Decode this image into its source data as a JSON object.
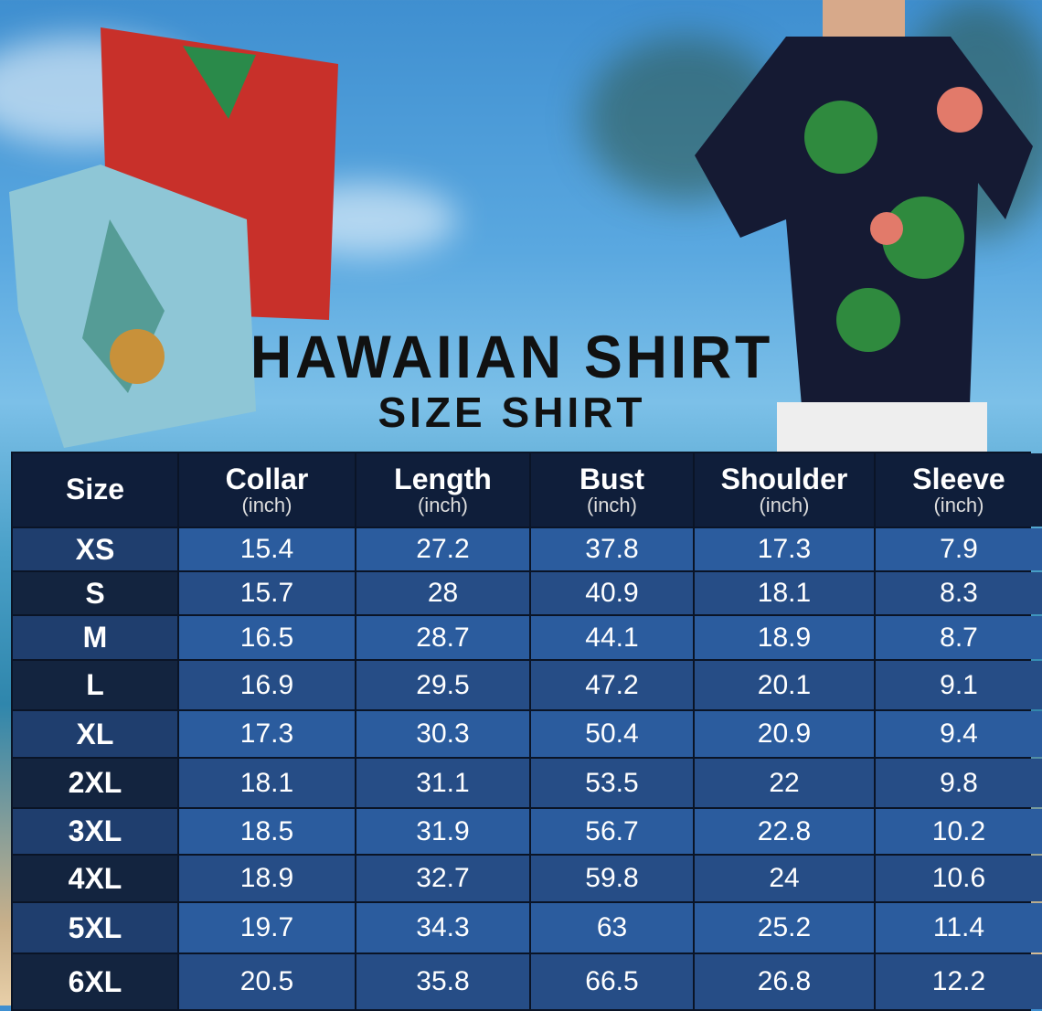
{
  "title": "HAWAIIAN SHIRT",
  "subtitle": "SIZE SHIRT",
  "table": {
    "headers": [
      {
        "label": "Size",
        "unit": ""
      },
      {
        "label": "Collar",
        "unit": "(inch)"
      },
      {
        "label": "Length",
        "unit": "(inch)"
      },
      {
        "label": "Bust",
        "unit": "(inch)"
      },
      {
        "label": "Shoulder",
        "unit": "(inch)"
      },
      {
        "label": "Sleeve",
        "unit": "(inch)"
      }
    ],
    "rows": [
      [
        "XS",
        "15.4",
        "27.2",
        "37.8",
        "17.3",
        "7.9"
      ],
      [
        "S",
        "15.7",
        "28",
        "40.9",
        "18.1",
        "8.3"
      ],
      [
        "M",
        "16.5",
        "28.7",
        "44.1",
        "18.9",
        "8.7"
      ],
      [
        "L",
        "16.9",
        "29.5",
        "47.2",
        "20.1",
        "9.1"
      ],
      [
        "XL",
        "17.3",
        "30.3",
        "50.4",
        "20.9",
        "9.4"
      ],
      [
        "2XL",
        "18.1",
        "31.1",
        "53.5",
        "22",
        "9.8"
      ],
      [
        "3XL",
        "18.5",
        "31.9",
        "56.7",
        "22.8",
        "10.2"
      ],
      [
        "4XL",
        "18.9",
        "32.7",
        "59.8",
        "24",
        "10.6"
      ],
      [
        "5XL",
        "19.7",
        "34.3",
        "63",
        "25.2",
        "11.4"
      ],
      [
        "6XL",
        "20.5",
        "35.8",
        "66.5",
        "26.8",
        "12.2"
      ]
    ]
  },
  "colors": {
    "header": "#0f1e3a",
    "row_light": "#2b5c9e",
    "row_dark": "#264d86"
  }
}
